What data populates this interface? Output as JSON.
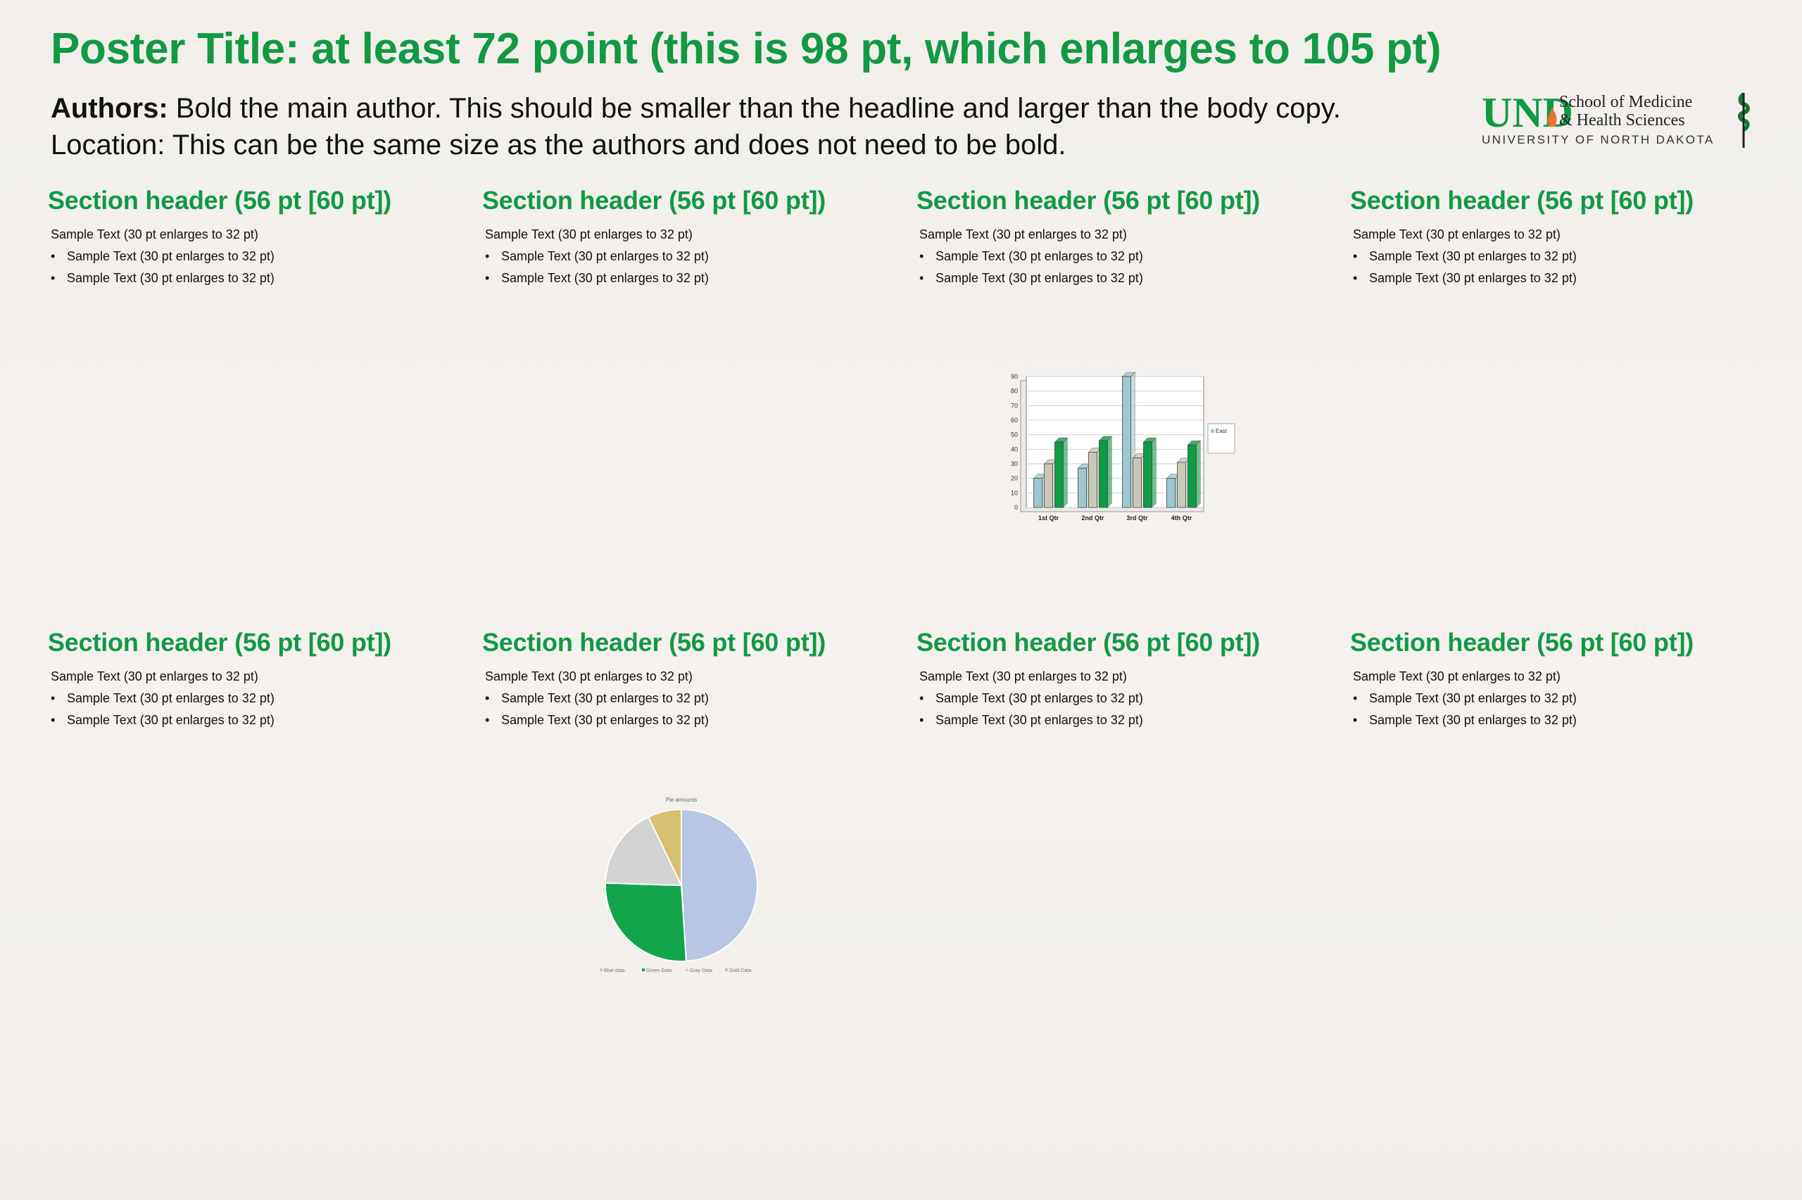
{
  "poster": {
    "title": "Poster Title: at least 72 point (this is 98 pt, which enlarges to 105 pt)",
    "authors_label": "Authors:",
    "authors_text": " Bold the main author. This should be smaller than the headline and larger than the body copy.",
    "location_text": "Location: This can be the same size as the authors and does not need to be bold."
  },
  "logo": {
    "und": "UND",
    "line1": "School of Medicine",
    "line2": "& Health Sciences",
    "line3": "UNIVERSITY OF NORTH DAKOTA",
    "brand_green": "#119944"
  },
  "sections": [
    {
      "header": "Section header (56 pt [60 pt])",
      "lead": "Sample Text (30 pt enlarges to 32 pt)",
      "bullets": [
        "Sample Text (30 pt enlarges to 32 pt)",
        "Sample Text (30 pt enlarges to 32 pt)"
      ]
    },
    {
      "header": "Section header (56 pt [60 pt])",
      "lead": "Sample Text (30 pt enlarges to 32 pt)",
      "bullets": [
        "Sample Text (30 pt enlarges to 32 pt)",
        "Sample Text (30 pt enlarges to 32 pt)"
      ]
    },
    {
      "header": "Section header (56 pt [60 pt])",
      "lead": "Sample Text (30 pt enlarges to 32 pt)",
      "bullets": [
        "Sample Text (30 pt enlarges to 32 pt)",
        "Sample Text (30 pt enlarges to 32 pt)"
      ]
    },
    {
      "header": "Section header (56 pt [60 pt])",
      "lead": "Sample Text (30 pt enlarges to 32 pt)",
      "bullets": [
        "Sample Text (30 pt enlarges to 32 pt)",
        "Sample Text (30 pt enlarges to 32 pt)"
      ]
    },
    {
      "header": "Section header (56 pt [60 pt])",
      "lead": "Sample Text (30 pt enlarges to 32 pt)",
      "bullets": [
        "Sample Text (30 pt enlarges to 32 pt)",
        "Sample Text (30 pt enlarges to 32 pt)"
      ]
    },
    {
      "header": "Section header (56 pt [60 pt])",
      "lead": "Sample Text (30 pt enlarges to 32 pt)",
      "bullets": [
        "Sample Text (30 pt enlarges to 32 pt)",
        "Sample Text (30 pt enlarges to 32 pt)"
      ]
    },
    {
      "header": "Section header (56 pt [60 pt])",
      "lead": "Sample Text (30 pt enlarges to 32 pt)",
      "bullets": [
        "Sample Text (30 pt enlarges to 32 pt)",
        "Sample Text (30 pt enlarges to 32 pt)"
      ]
    },
    {
      "header": "Section header (56 pt [60 pt])",
      "lead": "Sample Text (30 pt enlarges to 32 pt)",
      "bullets": [
        "Sample Text (30 pt enlarges to 32 pt)",
        "Sample Text (30 pt enlarges to 32 pt)"
      ]
    }
  ],
  "bullet_glyph": "•",
  "chart_data": [
    {
      "type": "bar",
      "categories": [
        "1st Qtr",
        "2nd Qtr",
        "3rd Qtr",
        "4th Qtr"
      ],
      "series": [
        {
          "name": "",
          "color": "#9fc6cf",
          "values": [
            20,
            27,
            90,
            20
          ]
        },
        {
          "name": "",
          "color": "#c9c7b8",
          "values": [
            30,
            38,
            34,
            31
          ]
        },
        {
          "name": "",
          "color": "#0f9a47",
          "values": [
            45,
            46,
            45,
            43
          ]
        }
      ],
      "legend": [
        "East"
      ],
      "legend_position": "right",
      "yticks": [
        0,
        10,
        20,
        30,
        40,
        50,
        60,
        70,
        80,
        90
      ],
      "ylim": [
        0,
        90
      ],
      "grid": true
    },
    {
      "type": "pie",
      "title": "Pie amounts",
      "slices": [
        {
          "name": "Blue data",
          "value": 48,
          "color": "#b8c6e4"
        },
        {
          "name": "Green Data",
          "value": 26,
          "color": "#12a54a"
        },
        {
          "name": "Gray Data",
          "value": 17,
          "color": "#d3d3d3"
        },
        {
          "name": "Gold Data",
          "value": 7,
          "color": "#d6c172"
        }
      ],
      "legend_position": "bottom"
    }
  ]
}
